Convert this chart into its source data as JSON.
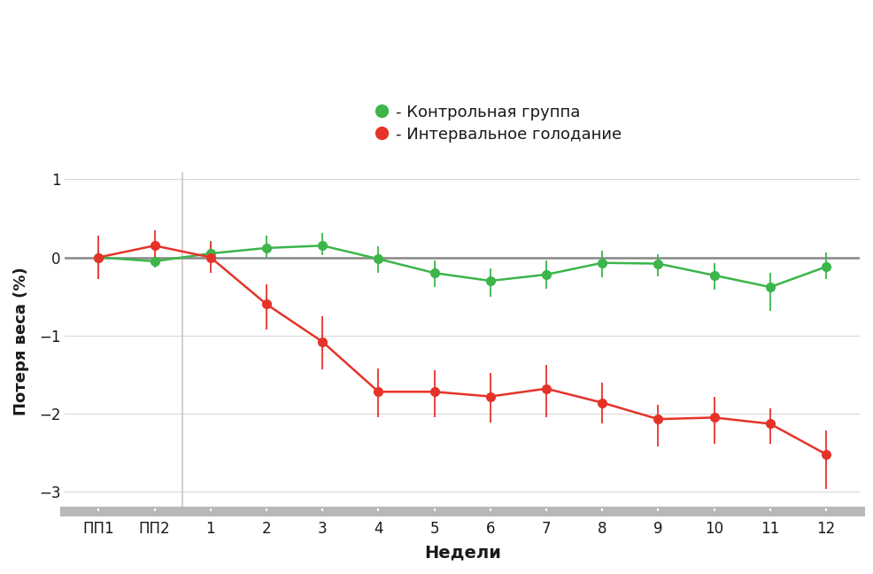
{
  "xlabel": "Недели",
  "ylabel": "Потеря веса (%)",
  "background_color": "#ffffff",
  "plot_background": "#ffffff",
  "legend_labels": [
    "- Контрольная группа",
    "- Интервальное голодание"
  ],
  "legend_colors": [
    "#3cb54a",
    "#e63329"
  ],
  "x_labels": [
    "ПП1",
    "ПП2",
    "1",
    "2",
    "3",
    "4",
    "5",
    "6",
    "7",
    "8",
    "9",
    "10",
    "11",
    "12"
  ],
  "x_positions": [
    -1,
    0,
    1,
    2,
    3,
    4,
    5,
    6,
    7,
    8,
    9,
    10,
    11,
    12
  ],
  "green_y": [
    0.0,
    -0.05,
    0.05,
    0.12,
    0.15,
    -0.02,
    -0.2,
    -0.3,
    -0.22,
    -0.07,
    -0.08,
    -0.23,
    -0.38,
    -0.12
  ],
  "green_yerr_lo": [
    0.1,
    0.08,
    0.1,
    0.13,
    0.12,
    0.18,
    0.18,
    0.2,
    0.18,
    0.18,
    0.16,
    0.18,
    0.3,
    0.16
  ],
  "green_yerr_hi": [
    0.1,
    0.06,
    0.16,
    0.16,
    0.16,
    0.16,
    0.16,
    0.16,
    0.18,
    0.16,
    0.12,
    0.16,
    0.18,
    0.18
  ],
  "red_y": [
    0.0,
    0.15,
    0.0,
    -0.6,
    -1.08,
    -1.72,
    -1.72,
    -1.78,
    -1.68,
    -1.86,
    -2.07,
    -2.05,
    -2.13,
    -2.52
  ],
  "red_yerr_lo": [
    0.28,
    0.2,
    0.2,
    0.32,
    0.35,
    0.33,
    0.33,
    0.33,
    0.36,
    0.26,
    0.35,
    0.33,
    0.26,
    0.44
  ],
  "red_yerr_hi": [
    0.28,
    0.2,
    0.2,
    0.26,
    0.33,
    0.3,
    0.28,
    0.3,
    0.3,
    0.26,
    0.18,
    0.26,
    0.2,
    0.3
  ],
  "ylim": [
    -3.25,
    1.1
  ],
  "yticks": [
    -3,
    -2,
    -1,
    0,
    1
  ],
  "vline_x": 0.5,
  "hline_y": 0,
  "grid_color": "#d8d8d8",
  "line_color_green": "#3cb54a",
  "line_color_red": "#e63329",
  "zero_line_color": "#888888",
  "vline_color": "#c8c8c8",
  "bottom_bar_color": "#b8b8b8",
  "axis_label_color": "#1a1a1a",
  "tick_label_color": "#1a1a1a"
}
